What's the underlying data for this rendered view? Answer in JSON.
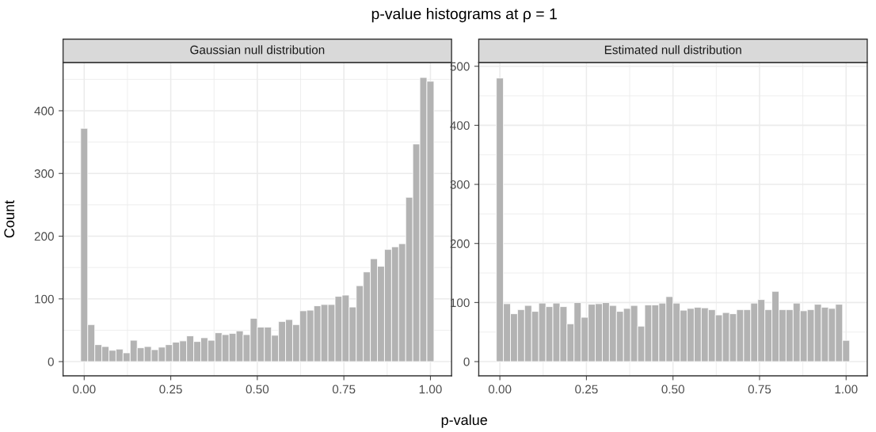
{
  "chart_data": [
    {
      "type": "histogram",
      "title": "Gaussian null distribution",
      "xlabel": "p-value",
      "ylabel": "Count",
      "annotations": [
        "p-value histograms at ρ = 1"
      ],
      "color": "#b3b3b3",
      "bins": [
        -0.0102,
        0.0102,
        0.0306,
        0.051,
        0.0714,
        0.0918,
        0.1122,
        0.1327,
        0.1531,
        0.1735,
        0.1939,
        0.2143,
        0.2347,
        0.2551,
        0.2755,
        0.2959,
        0.3163,
        0.3367,
        0.3571,
        0.3776,
        0.398,
        0.4184,
        0.4388,
        0.4592,
        0.4796,
        0.5,
        0.5204,
        0.5408,
        0.5612,
        0.5816,
        0.602,
        0.6224,
        0.6429,
        0.6633,
        0.6837,
        0.7041,
        0.7245,
        0.7449,
        0.7653,
        0.7857,
        0.8061,
        0.8265,
        0.8469,
        0.8673,
        0.8878,
        0.9082,
        0.9286,
        0.949,
        0.9694,
        0.9898,
        1.0102
      ],
      "values": [
        372,
        59,
        27,
        24,
        18,
        20,
        14,
        34,
        22,
        24,
        19,
        23,
        27,
        31,
        33,
        41,
        32,
        38,
        34,
        46,
        43,
        45,
        49,
        43,
        69,
        55,
        55,
        42,
        64,
        67,
        59,
        81,
        82,
        89,
        91,
        91,
        104,
        106,
        87,
        121,
        143,
        164,
        152,
        179,
        183,
        188,
        262,
        347,
        453,
        447
      ],
      "xlim": [
        -0.061,
        1.061
      ],
      "ylim": [
        -22.7,
        476.7
      ],
      "xticks": [
        {
          "value": 0,
          "label": "0.00"
        },
        {
          "value": 0.25,
          "label": "0.25"
        },
        {
          "value": 0.5,
          "label": "0.50"
        },
        {
          "value": 0.75,
          "label": "0.75"
        },
        {
          "value": 1,
          "label": "1.00"
        }
      ],
      "yticks": [
        0,
        100,
        200,
        300,
        400
      ],
      "grid": true,
      "legend": false
    },
    {
      "type": "histogram",
      "title": "Estimated null distribution",
      "color": "#b3b3b3",
      "bins": [
        -0.0102,
        0.0102,
        0.0306,
        0.051,
        0.0714,
        0.0918,
        0.1122,
        0.1327,
        0.1531,
        0.1735,
        0.1939,
        0.2143,
        0.2347,
        0.2551,
        0.2755,
        0.2959,
        0.3163,
        0.3367,
        0.3571,
        0.3776,
        0.398,
        0.4184,
        0.4388,
        0.4592,
        0.4796,
        0.5,
        0.5204,
        0.5408,
        0.5612,
        0.5816,
        0.602,
        0.6224,
        0.6429,
        0.6633,
        0.6837,
        0.7041,
        0.7245,
        0.7449,
        0.7653,
        0.7857,
        0.8061,
        0.8265,
        0.8469,
        0.8673,
        0.8878,
        0.9082,
        0.9286,
        0.949,
        0.9694,
        0.9898,
        1.0102
      ],
      "values": [
        480,
        98,
        81,
        88,
        95,
        85,
        99,
        93,
        99,
        93,
        64,
        100,
        75,
        97,
        98,
        100,
        95,
        85,
        90,
        95,
        60,
        96,
        96,
        99,
        110,
        99,
        87,
        90,
        92,
        91,
        88,
        79,
        83,
        81,
        88,
        88,
        99,
        105,
        88,
        119,
        88,
        88,
        99,
        86,
        88,
        97,
        92,
        90,
        97,
        36
      ],
      "xlim": [
        -0.061,
        1.061
      ],
      "ylim": [
        -24.1,
        506.1
      ],
      "xticks": [
        {
          "value": 0,
          "label": "0.00"
        },
        {
          "value": 0.25,
          "label": "0.25"
        },
        {
          "value": 0.5,
          "label": "0.50"
        },
        {
          "value": 0.75,
          "label": "0.75"
        },
        {
          "value": 1,
          "label": "1.00"
        }
      ],
      "yticks": [
        0,
        100,
        200,
        300,
        400,
        500
      ],
      "grid": true,
      "legend": false
    }
  ]
}
